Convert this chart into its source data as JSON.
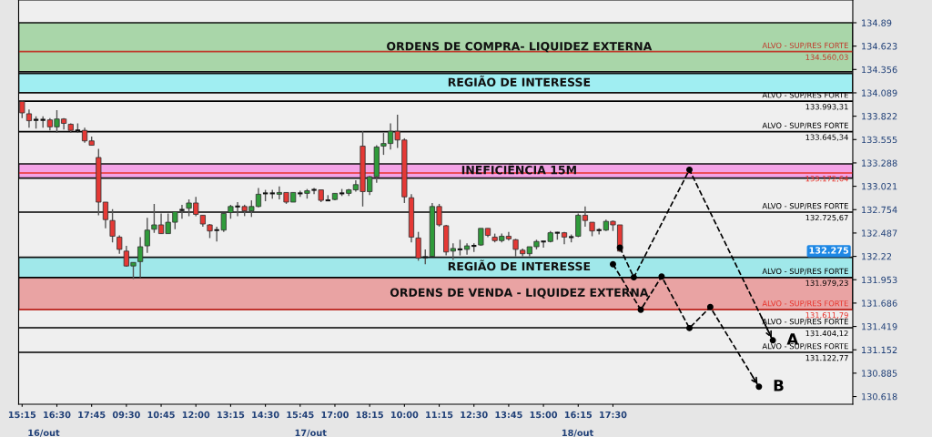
{
  "chart_data": {
    "type": "candlestick",
    "categories": [
      "15:15",
      null,
      null,
      null,
      null,
      "16:30",
      null,
      null,
      null,
      null,
      "17:45",
      null,
      null,
      null,
      null,
      "09:30",
      null,
      null,
      null,
      null,
      "10:45",
      null,
      null,
      null,
      null,
      "12:00",
      null,
      null,
      null,
      null,
      "13:15",
      null,
      null,
      null,
      null,
      "14:30",
      null,
      null,
      null,
      null,
      "15:45",
      null,
      null,
      null,
      null,
      "17:00",
      null,
      null,
      null,
      null,
      "18:15",
      null,
      null,
      null,
      null,
      "10:00",
      null,
      null,
      null,
      null,
      "11:15",
      null,
      null,
      null,
      null,
      "12:30",
      null,
      null,
      null,
      null,
      "13:45",
      null,
      null,
      null,
      null,
      "15:00",
      null,
      null,
      null,
      null,
      "16:15",
      null,
      null,
      null,
      null,
      "17:30",
      null,
      null,
      null,
      null,
      null,
      null,
      null,
      null,
      null,
      null,
      null,
      null,
      null,
      null,
      null,
      null,
      null,
      null,
      null,
      null,
      null,
      null,
      null,
      null,
      null,
      null,
      null,
      null,
      null,
      null,
      null,
      null,
      null,
      null
    ],
    "ohlc": [
      [
        133.99,
        134.0,
        133.8,
        133.86
      ],
      [
        133.85,
        133.9,
        133.69,
        133.77
      ],
      [
        133.78,
        133.82,
        133.68,
        133.78
      ],
      [
        133.78,
        133.82,
        133.69,
        133.78
      ],
      [
        133.78,
        133.8,
        133.66,
        133.7
      ],
      [
        133.7,
        133.89,
        133.63,
        133.79
      ],
      [
        133.79,
        133.8,
        133.67,
        133.74
      ],
      [
        133.73,
        133.74,
        133.63,
        133.66
      ],
      [
        133.66,
        133.74,
        133.63,
        133.66
      ],
      [
        133.66,
        133.69,
        133.52,
        133.54
      ],
      [
        133.54,
        133.59,
        133.49,
        133.49
      ],
      [
        133.35,
        133.45,
        132.69,
        132.84
      ],
      [
        132.84,
        132.84,
        132.54,
        132.64
      ],
      [
        132.63,
        132.76,
        132.38,
        132.45
      ],
      [
        132.44,
        132.46,
        132.25,
        132.3
      ],
      [
        132.28,
        132.34,
        132.1,
        132.11
      ],
      [
        132.11,
        132.15,
        131.96,
        132.15
      ],
      [
        132.16,
        132.44,
        131.98,
        132.33
      ],
      [
        132.34,
        132.66,
        132.26,
        132.52
      ],
      [
        132.53,
        132.82,
        132.49,
        132.58
      ],
      [
        132.58,
        132.71,
        132.48,
        132.48
      ],
      [
        132.48,
        132.71,
        132.48,
        132.61
      ],
      [
        132.61,
        132.73,
        132.53,
        132.73
      ],
      [
        132.75,
        132.81,
        132.65,
        132.75
      ],
      [
        132.77,
        132.87,
        132.68,
        132.83
      ],
      [
        132.83,
        132.9,
        132.68,
        132.7
      ],
      [
        132.69,
        132.69,
        132.56,
        132.59
      ],
      [
        132.58,
        132.59,
        132.43,
        132.51
      ],
      [
        132.52,
        132.56,
        132.39,
        132.52
      ],
      [
        132.52,
        132.71,
        132.5,
        132.71
      ],
      [
        132.72,
        132.81,
        132.65,
        132.79
      ],
      [
        132.79,
        132.84,
        132.68,
        132.79
      ],
      [
        132.79,
        132.81,
        132.68,
        132.74
      ],
      [
        132.74,
        132.86,
        132.67,
        132.79
      ],
      [
        132.79,
        133.0,
        132.78,
        132.93
      ],
      [
        132.94,
        132.98,
        132.85,
        132.94
      ],
      [
        132.94,
        132.98,
        132.88,
        132.94
      ],
      [
        132.93,
        133.02,
        132.87,
        132.95
      ],
      [
        132.95,
        132.95,
        132.82,
        132.84
      ],
      [
        132.84,
        132.95,
        132.84,
        132.95
      ],
      [
        132.94,
        132.97,
        132.9,
        132.94
      ],
      [
        132.94,
        132.99,
        132.88,
        132.97
      ],
      [
        132.98,
        133.0,
        132.93,
        132.98
      ],
      [
        132.98,
        132.98,
        132.84,
        132.86
      ],
      [
        132.86,
        132.92,
        132.85,
        132.86
      ],
      [
        132.87,
        132.94,
        132.86,
        132.94
      ],
      [
        132.94,
        132.99,
        132.91,
        132.94
      ],
      [
        132.94,
        132.99,
        132.91,
        132.98
      ],
      [
        132.98,
        133.09,
        132.96,
        133.04
      ],
      [
        133.48,
        133.65,
        132.79,
        132.96
      ],
      [
        132.96,
        133.14,
        132.92,
        133.13
      ],
      [
        133.13,
        133.49,
        133.06,
        133.47
      ],
      [
        133.48,
        133.63,
        133.38,
        133.51
      ],
      [
        133.51,
        133.74,
        133.44,
        133.65
      ],
      [
        133.65,
        133.84,
        133.46,
        133.55
      ],
      [
        133.55,
        133.57,
        132.83,
        132.9
      ],
      [
        132.89,
        132.93,
        132.38,
        132.44
      ],
      [
        132.43,
        132.5,
        132.17,
        132.2
      ],
      [
        132.21,
        132.3,
        132.13,
        132.21
      ],
      [
        132.22,
        132.83,
        132.22,
        132.79
      ],
      [
        132.79,
        132.82,
        132.56,
        132.58
      ],
      [
        132.57,
        132.58,
        132.23,
        132.27
      ],
      [
        132.28,
        132.37,
        132.18,
        132.31
      ],
      [
        132.3,
        132.41,
        132.23,
        132.3
      ],
      [
        132.3,
        132.37,
        132.24,
        132.34
      ],
      [
        132.34,
        132.37,
        132.27,
        132.34
      ],
      [
        132.35,
        132.54,
        132.34,
        132.54
      ],
      [
        132.54,
        132.54,
        132.44,
        132.46
      ],
      [
        132.44,
        132.48,
        132.38,
        132.4
      ],
      [
        132.4,
        132.48,
        132.38,
        132.45
      ],
      [
        132.45,
        132.5,
        132.4,
        132.42
      ],
      [
        132.41,
        132.42,
        132.22,
        132.3
      ],
      [
        132.29,
        132.31,
        132.22,
        132.25
      ],
      [
        132.25,
        132.33,
        132.22,
        132.33
      ],
      [
        132.33,
        132.41,
        132.3,
        132.39
      ],
      [
        132.39,
        132.39,
        132.32,
        132.39
      ],
      [
        132.39,
        132.51,
        132.38,
        132.49
      ],
      [
        132.49,
        132.5,
        132.41,
        132.49
      ],
      [
        132.49,
        132.5,
        132.36,
        132.44
      ],
      [
        132.44,
        132.47,
        132.38,
        132.44
      ],
      [
        132.45,
        132.71,
        132.44,
        132.69
      ],
      [
        132.69,
        132.79,
        132.56,
        132.63
      ],
      [
        132.61,
        132.61,
        132.45,
        132.51
      ],
      [
        132.52,
        132.54,
        132.47,
        132.52
      ],
      [
        132.52,
        132.64,
        132.51,
        132.62
      ],
      [
        132.62,
        132.63,
        132.51,
        132.58
      ],
      [
        132.58,
        132.58,
        132.27,
        132.28
      ],
      null,
      null,
      null,
      null,
      null,
      null,
      null,
      null,
      null,
      null,
      null,
      null,
      null,
      null,
      null,
      null,
      null,
      null,
      null,
      null,
      null,
      null,
      null,
      null,
      null,
      null,
      null,
      null,
      null,
      null,
      null,
      null,
      null
    ],
    "colors": [
      "#e53935",
      "#e53935",
      "#111111",
      "#111111",
      "#e53935",
      "#2f9b3a",
      "#e53935",
      "#e53935",
      "#111111",
      "#e53935",
      "#e53935",
      "#e53935",
      "#e53935",
      "#e53935",
      "#e53935",
      "#e53935",
      "#2f9b3a",
      "#2f9b3a",
      "#2f9b3a",
      "#2f9b3a",
      "#e53935",
      "#2f9b3a",
      "#2f9b3a",
      "#111111",
      "#2f9b3a",
      "#e53935",
      "#e53935",
      "#e53935",
      "#111111",
      "#2f9b3a",
      "#2f9b3a",
      "#111111",
      "#e53935",
      "#2f9b3a",
      "#2f9b3a",
      "#111111",
      "#111111",
      "#2f9b3a",
      "#e53935",
      "#2f9b3a",
      "#111111",
      "#2f9b3a",
      "#111111",
      "#e53935",
      "#111111",
      "#2f9b3a",
      "#111111",
      "#2f9b3a",
      "#2f9b3a",
      "#e53935",
      "#2f9b3a",
      "#2f9b3a",
      "#2f9b3a",
      "#2f9b3a",
      "#e53935",
      "#e53935",
      "#e53935",
      "#e53935",
      "#111111",
      "#2f9b3a",
      "#e53935",
      "#e53935",
      "#2f9b3a",
      "#111111",
      "#2f9b3a",
      "#111111",
      "#2f9b3a",
      "#e53935",
      "#e53935",
      "#2f9b3a",
      "#e53935",
      "#e53935",
      "#e53935",
      "#2f9b3a",
      "#2f9b3a",
      "#111111",
      "#2f9b3a",
      "#111111",
      "#e53935",
      "#111111",
      "#2f9b3a",
      "#e53935",
      "#e53935",
      "#111111",
      "#2f9b3a",
      "#e53935",
      "#e53935",
      null,
      null,
      null,
      null,
      null,
      null,
      null,
      null,
      null,
      null,
      null,
      null,
      null,
      null,
      null,
      null,
      null,
      null,
      null,
      null,
      null,
      null,
      null,
      null,
      null,
      null,
      null,
      null,
      null,
      null,
      null,
      null,
      null
    ],
    "series": [
      {
        "name": "A",
        "type": "line",
        "color": "#000000",
        "values": [
          null,
          null,
          null,
          null,
          null,
          null,
          null,
          null,
          null,
          null,
          null,
          null,
          null,
          null,
          null,
          null,
          null,
          null,
          null,
          null,
          null,
          null,
          null,
          null,
          null,
          null,
          null,
          null,
          null,
          null,
          null,
          null,
          null,
          null,
          null,
          null,
          null,
          null,
          null,
          null,
          null,
          null,
          null,
          null,
          null,
          null,
          null,
          null,
          null,
          null,
          null,
          null,
          null,
          null,
          null,
          null,
          null,
          null,
          null,
          null,
          null,
          null,
          null,
          null,
          null,
          null,
          null,
          null,
          null,
          null,
          null,
          null,
          null,
          null,
          null,
          null,
          null,
          null,
          null,
          null,
          null,
          null,
          null,
          null,
          null,
          null,
          132.32,
          null,
          131.98,
          null,
          null,
          null,
          null,
          null,
          null,
          null,
          133.21,
          null,
          null,
          null,
          null,
          null,
          null,
          null,
          null,
          null,
          null,
          null,
          131.26,
          null,
          null,
          null,
          null,
          null,
          null,
          null,
          null,
          null,
          null,
          null
        ]
      },
      {
        "name": "B",
        "type": "line",
        "color": "#000000",
        "values": [
          null,
          null,
          null,
          null,
          null,
          null,
          null,
          null,
          null,
          null,
          null,
          null,
          null,
          null,
          null,
          null,
          null,
          null,
          null,
          null,
          null,
          null,
          null,
          null,
          null,
          null,
          null,
          null,
          null,
          null,
          null,
          null,
          null,
          null,
          null,
          null,
          null,
          null,
          null,
          null,
          null,
          null,
          null,
          null,
          null,
          null,
          null,
          null,
          null,
          null,
          null,
          null,
          null,
          null,
          null,
          null,
          null,
          null,
          null,
          null,
          null,
          null,
          null,
          null,
          null,
          null,
          null,
          null,
          null,
          null,
          null,
          null,
          null,
          null,
          null,
          null,
          null,
          null,
          null,
          null,
          null,
          null,
          null,
          null,
          null,
          132.13,
          null,
          null,
          null,
          131.61,
          null,
          null,
          131.99,
          null,
          null,
          null,
          131.4,
          null,
          null,
          131.64,
          null,
          null,
          null,
          null,
          null,
          null,
          130.73,
          null,
          null,
          null,
          null,
          null,
          null,
          null,
          null,
          null,
          null,
          null,
          null,
          null
        ]
      }
    ],
    "marker": "circle",
    "line_style": "dashed",
    "ylim": [
      130.53,
      135.15
    ],
    "yticks": [
      130.618,
      130.885,
      131.152,
      131.419,
      131.686,
      131.953,
      132.22,
      132.487,
      132.754,
      133.021,
      133.288,
      133.555,
      133.822,
      134.089,
      134.356,
      134.623,
      134.89
    ],
    "legend": "right",
    "bands": [
      {
        "axis": "y",
        "from": 134.33,
        "to": 134.89,
        "label": "ORDENS DE COMPRA- LIQUIDEZ EXTERNA",
        "color": "#a9d6a9"
      },
      {
        "axis": "y",
        "from": 134.09,
        "to": 134.31,
        "label": "REGIÃO DE INTERESSE",
        "color": "#a0eef2"
      },
      {
        "axis": "y",
        "from": 133.115,
        "to": 133.277,
        "label": "INEFICIÊNCIA 15M",
        "color": "#f3a3e6"
      },
      {
        "axis": "y",
        "from": 131.979,
        "to": 132.21,
        "label": "REGIÃO DE INTERESSE",
        "color": "#a0e8ea"
      },
      {
        "axis": "y",
        "from": 131.612,
        "to": 131.979,
        "label": "ORDENS DE VENDA - LIQUIDEZ EXTERNA",
        "color": "#e9a3a3"
      }
    ],
    "ref_lines": [
      {
        "axis": "y",
        "value": 134.56003,
        "label": "ALVO - SUP/RES FORTE\n134.560,03",
        "color": "#c0392b"
      },
      {
        "axis": "y",
        "value": 133.99331,
        "label": "ALVO - SUP/RES FORTE\n133.993,31",
        "color": "#000000"
      },
      {
        "axis": "y",
        "value": 133.64534,
        "label": "ALVO - SUP/RES FORTE\n133.645,34",
        "color": "#000000"
      },
      {
        "axis": "y",
        "value": 133.17264,
        "label": "133.172,64",
        "color": "#e8322a"
      },
      {
        "axis": "y",
        "value": 132.72567,
        "label": "ALVO - SUP/RES FORTE\n132.725,67",
        "color": "#000000"
      },
      {
        "axis": "y",
        "value": 131.97923,
        "label": "ALVO - SUP/RES FORTE\n131.979,23",
        "color": "#000000"
      },
      {
        "axis": "y",
        "value": 131.61179,
        "label": "ALVO - SUP/RES FORTE\n131.611,79",
        "color": "#e8322a"
      },
      {
        "axis": "y",
        "value": 131.40412,
        "label": "ALVO - SUP/RES FORTE\n131.404,12",
        "color": "#000000"
      },
      {
        "axis": "y",
        "value": 131.12277,
        "label": "ALVO - SUP/RES FORTE\n131.122,77",
        "color": "#000000"
      }
    ],
    "annotations": [
      "132.275",
      "16/out",
      "17/out",
      "18/out"
    ]
  }
}
